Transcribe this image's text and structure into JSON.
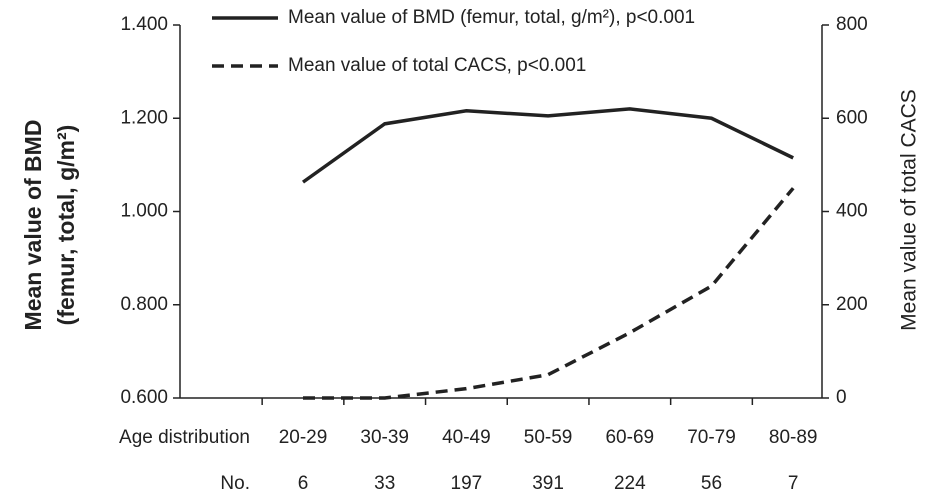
{
  "chart_data": {
    "type": "line",
    "categories": [
      "20-29",
      "30-39",
      "40-49",
      "50-59",
      "60-69",
      "70-79",
      "80-89"
    ],
    "x_label": "Age distribution",
    "counts_label": "No.",
    "counts": [
      6,
      33,
      197,
      391,
      224,
      56,
      7
    ],
    "ylabel": [
      "Mean value of BMD",
      "(femur, total, g/m²)"
    ],
    "y2label": "Mean value of total CACS",
    "ylim": [
      0.6,
      1.4
    ],
    "yticks": [
      {
        "value": 0.6,
        "label": "0.600"
      },
      {
        "value": 0.8,
        "label": "0.800"
      },
      {
        "value": 1.0,
        "label": "1.000"
      },
      {
        "value": 1.2,
        "label": "1.200"
      },
      {
        "value": 1.4,
        "label": "1.400"
      }
    ],
    "y2lim": [
      0,
      800
    ],
    "y2ticks": [
      0,
      200,
      400,
      600,
      800
    ],
    "series": [
      {
        "name": "Mean value of BMD (femur, total, g/m²), p<0.001",
        "color": "#222222",
        "dash": false,
        "values": [
          1.063,
          1.188,
          1.216,
          1.205,
          1.22,
          1.2,
          1.115
        ]
      },
      {
        "name": "Mean value of total CACS, p<0.001",
        "color": "#222222",
        "dash": true,
        "axis": "y2",
        "values": [
          0,
          0,
          20,
          50,
          140,
          240,
          450
        ]
      }
    ]
  }
}
